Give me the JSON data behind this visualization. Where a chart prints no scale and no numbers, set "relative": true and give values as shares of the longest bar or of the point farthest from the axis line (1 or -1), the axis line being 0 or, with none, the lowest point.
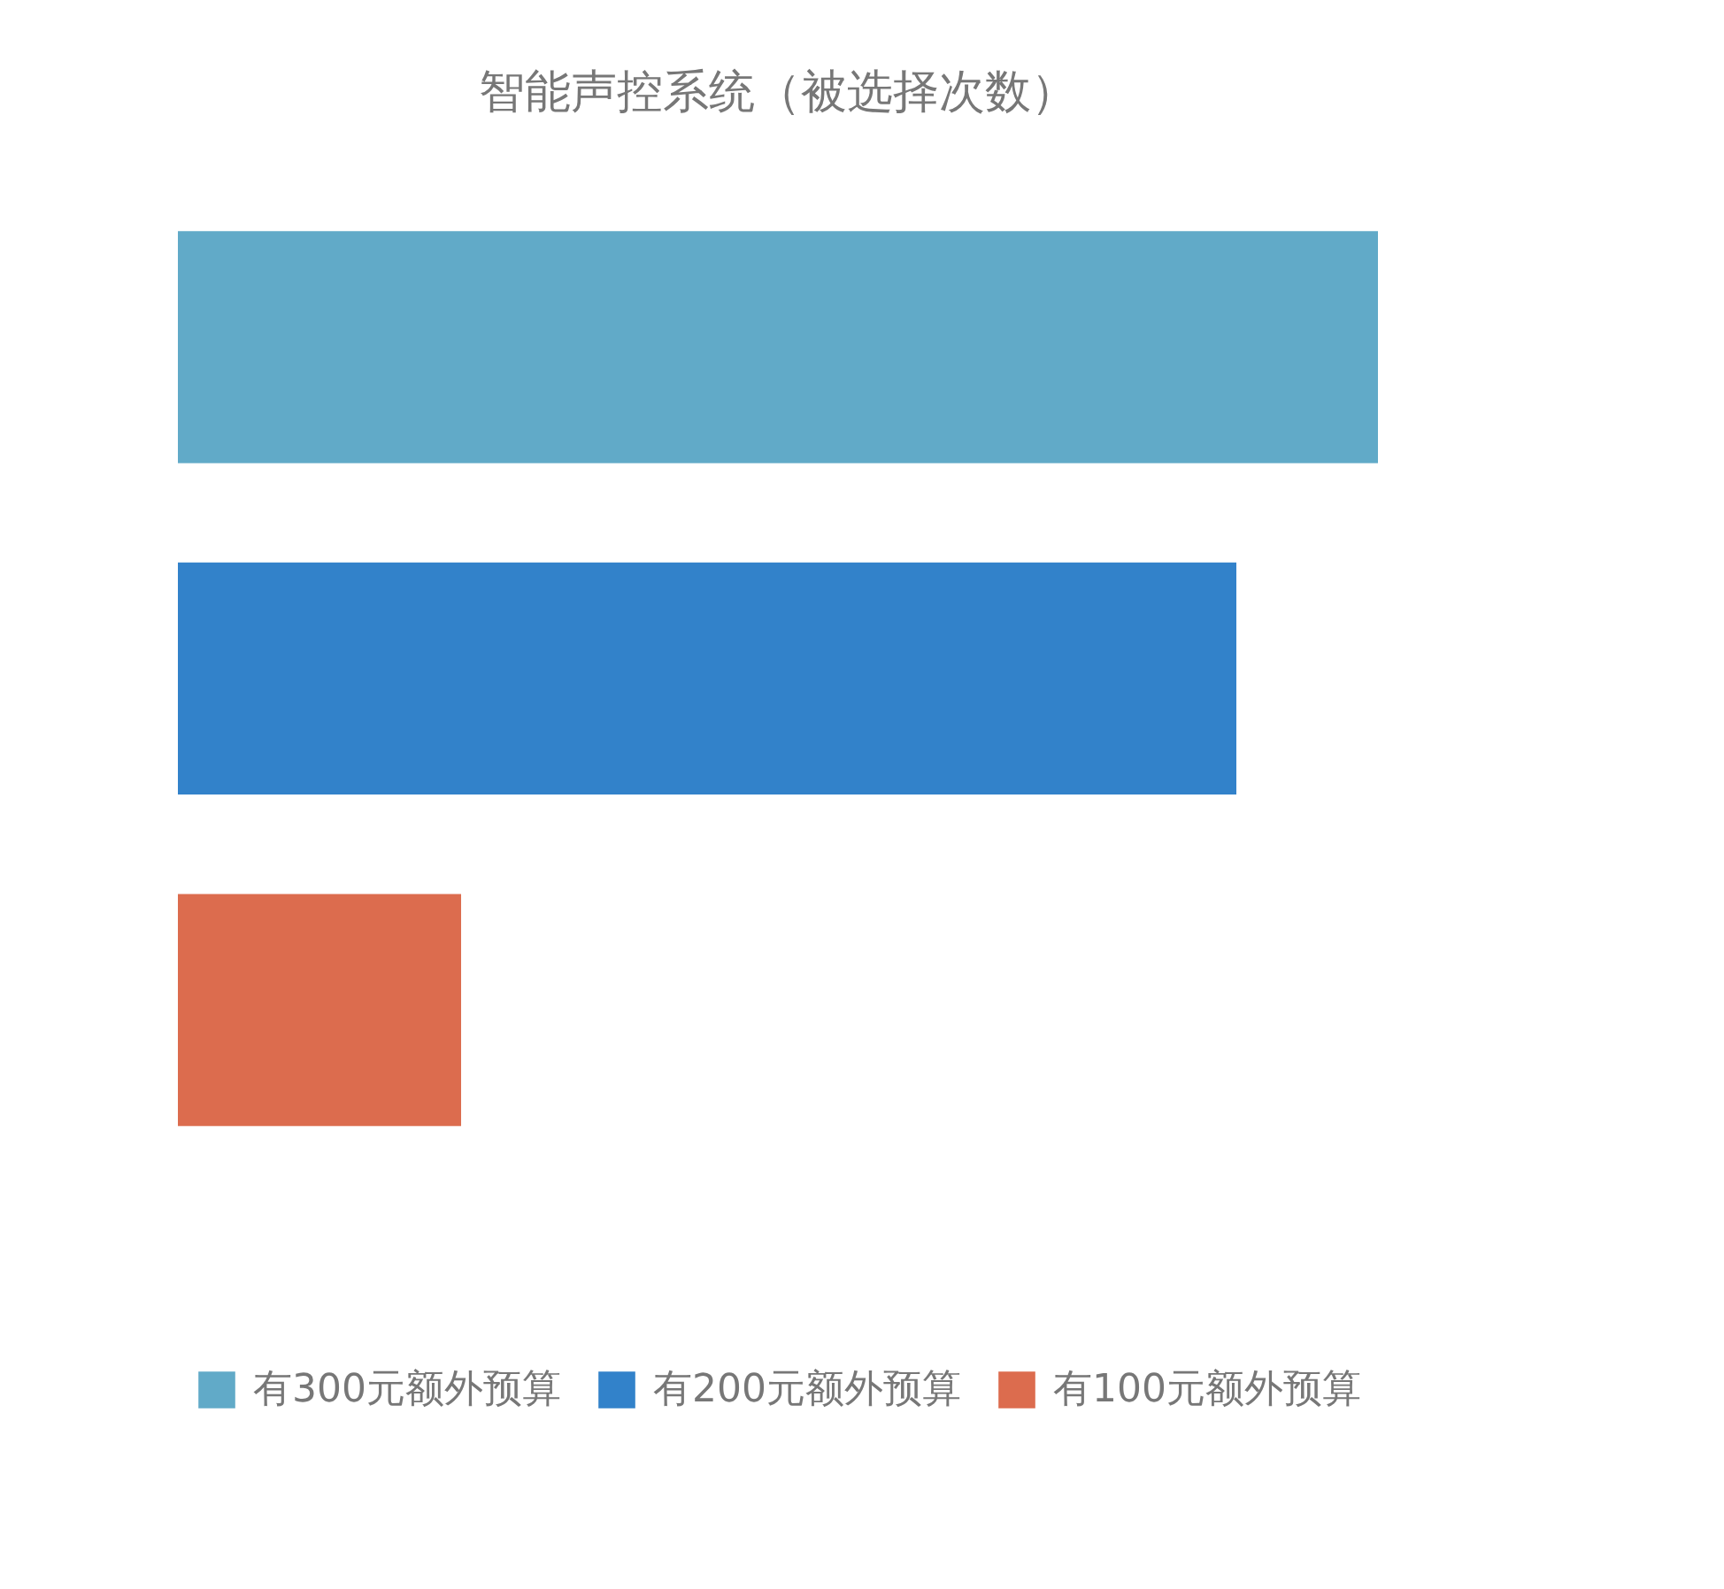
{
  "chart_data": {
    "type": "bar",
    "title": "智能声控系统（被选择次数）",
    "orientation": "horizontal",
    "relative": true,
    "stacked": true,
    "categories": [
      null,
      null,
      null
    ],
    "series": [
      {
        "name": "有300元额外预算",
        "color": "#61aac8",
        "values": [
          1,
          null,
          null
        ]
      },
      {
        "name": "有200元额外预算",
        "color": "#3282ca",
        "values": [
          null,
          0.882,
          null
        ]
      },
      {
        "name": "有100元额外预算",
        "color": "#dc6c4e",
        "values": [
          null,
          null,
          0.236
        ]
      }
    ],
    "grid": false,
    "legend": "bottom"
  }
}
